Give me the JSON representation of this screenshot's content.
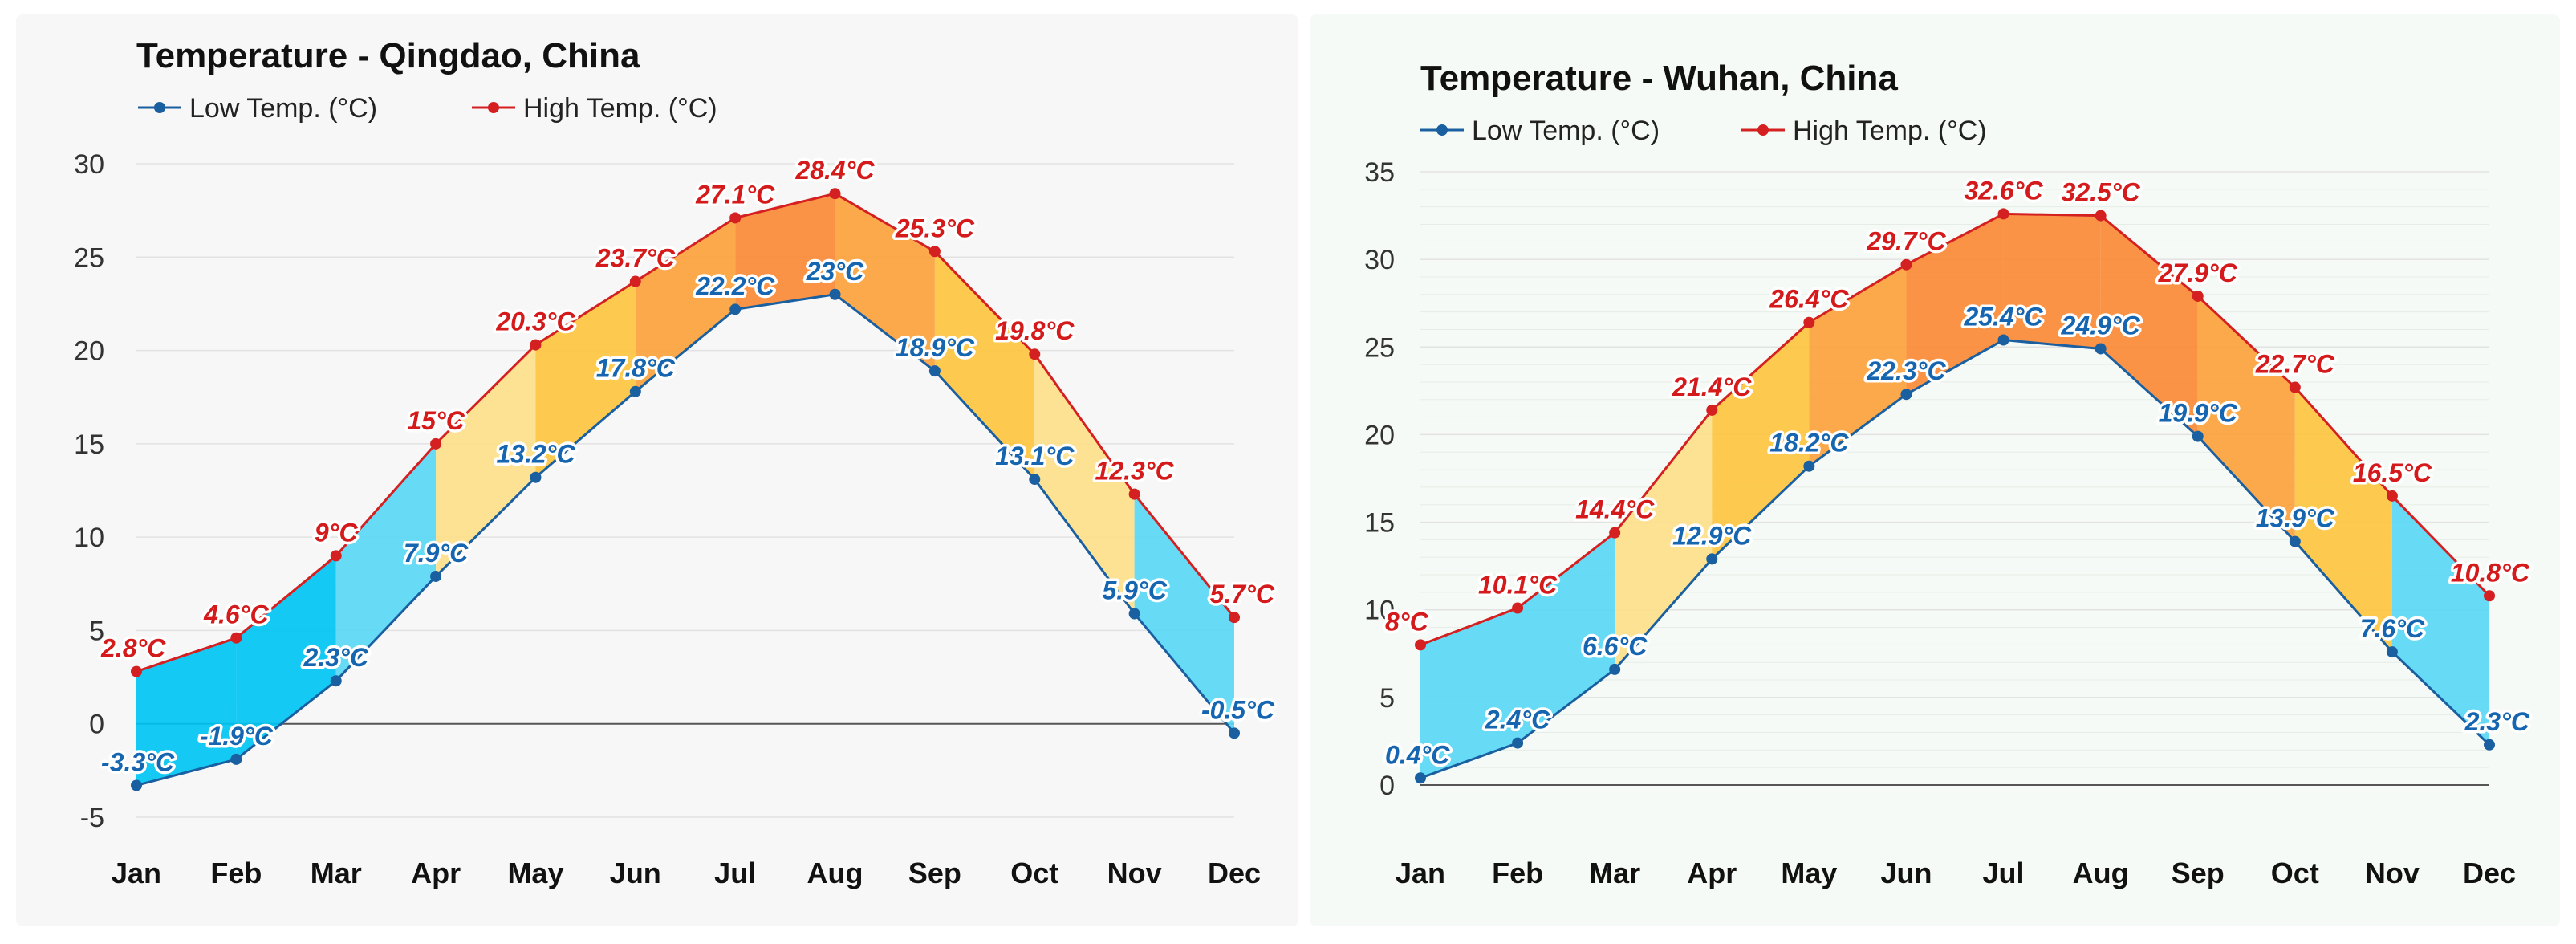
{
  "colors": {
    "low_line": "#1a5fa0",
    "high_line": "#d42020",
    "grid": "#e2e2e2",
    "zero_line": "#555555"
  },
  "chart_data": [
    {
      "type": "area",
      "title": "Temperature - Qingdao, China",
      "categories": [
        "Jan",
        "Feb",
        "Mar",
        "Apr",
        "May",
        "Jun",
        "Jul",
        "Aug",
        "Sep",
        "Oct",
        "Nov",
        "Dec"
      ],
      "series": [
        {
          "name": "Low Temp. (°C)",
          "values": [
            -3.3,
            -1.9,
            2.3,
            7.9,
            13.2,
            17.8,
            22.2,
            23,
            18.9,
            13.1,
            5.9,
            -0.5
          ],
          "labels": [
            "-3.3°C",
            "-1.9°C",
            "2.3°C",
            "7.9°C",
            "13.2°C",
            "17.8°C",
            "22.2°C",
            "23°C",
            "18.9°C",
            "13.1°C",
            "5.9°C",
            "-0.5°C"
          ]
        },
        {
          "name": "High Temp. (°C)",
          "values": [
            2.8,
            4.6,
            9,
            15,
            20.3,
            23.7,
            27.1,
            28.4,
            25.3,
            19.8,
            12.3,
            5.7
          ],
          "labels": [
            "2.8°C",
            "4.6°C",
            "9°C",
            "15°C",
            "20.3°C",
            "23.7°C",
            "27.1°C",
            "28.4°C",
            "25.3°C",
            "19.8°C",
            "12.3°C",
            "5.7°C"
          ]
        }
      ],
      "y_ticks": [
        "-5",
        "0",
        "5",
        "10",
        "15",
        "20",
        "25",
        "30"
      ],
      "ylim": [
        -5,
        30
      ],
      "grid": true,
      "legend": "top-left"
    },
    {
      "type": "area",
      "title": "Temperature - Wuhan, China",
      "categories": [
        "Jan",
        "Feb",
        "Mar",
        "Apr",
        "May",
        "Jun",
        "Jul",
        "Aug",
        "Sep",
        "Oct",
        "Nov",
        "Dec"
      ],
      "series": [
        {
          "name": "Low Temp. (°C)",
          "values": [
            0.4,
            2.4,
            6.6,
            12.9,
            18.2,
            22.3,
            25.4,
            24.9,
            19.9,
            13.9,
            7.6,
            2.3
          ],
          "labels": [
            "0.4°C",
            "2.4°C",
            "6.6°C",
            "12.9°C",
            "18.2°C",
            "22.3°C",
            "25.4°C",
            "24.9°C",
            "19.9°C",
            "13.9°C",
            "7.6°C",
            "2.3°C"
          ]
        },
        {
          "name": "High Temp. (°C)",
          "values": [
            8,
            10.1,
            14.4,
            21.4,
            26.4,
            29.7,
            32.6,
            32.5,
            27.9,
            22.7,
            16.5,
            10.8
          ],
          "labels": [
            "8°C",
            "10.1°C",
            "14.4°C",
            "21.4°C",
            "26.4°C",
            "29.7°C",
            "32.6°C",
            "32.5°C",
            "27.9°C",
            "22.7°C",
            "16.5°C",
            "10.8°C"
          ]
        }
      ],
      "y_ticks": [
        "0",
        "5",
        "10",
        "15",
        "20",
        "25",
        "30",
        "35"
      ],
      "ylim": [
        0,
        35
      ],
      "grid": true,
      "legend": "top-left"
    }
  ]
}
